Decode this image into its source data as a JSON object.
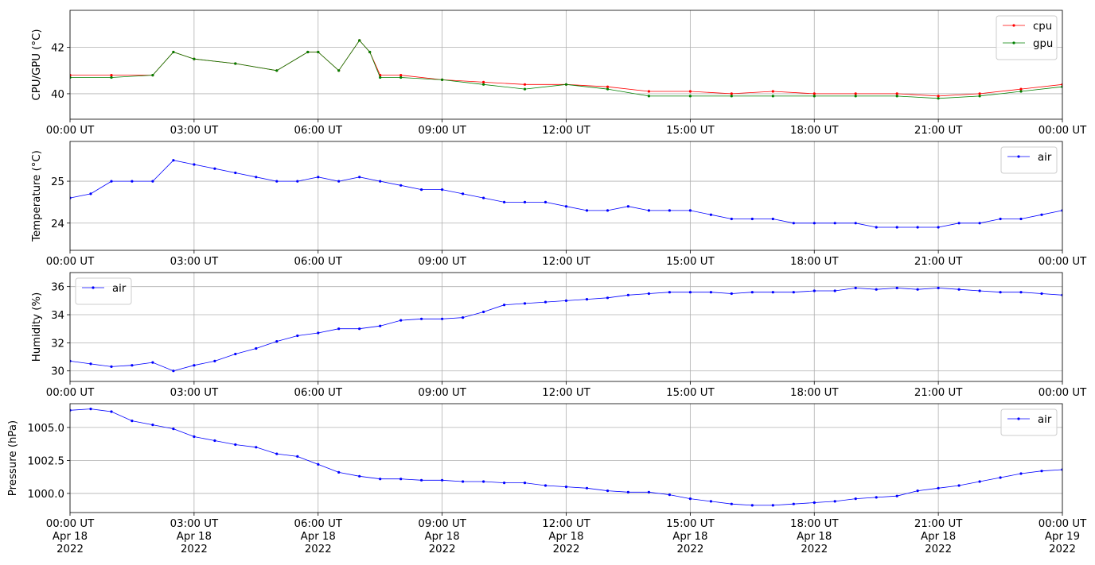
{
  "chart_data": [
    {
      "type": "line",
      "ylabel": "CPU/GPU (°C)",
      "ylim": [
        38.9,
        43.6
      ],
      "yticks": [
        40,
        42
      ],
      "xlim": [
        "2022-04-18T00:00",
        "2022-04-19T00:00"
      ],
      "xtick_labels": [
        [
          "00:00 UT"
        ],
        [
          "03:00 UT"
        ],
        [
          "06:00 UT"
        ],
        [
          "09:00 UT"
        ],
        [
          "12:00 UT"
        ],
        [
          "15:00 UT"
        ],
        [
          "18:00 UT"
        ],
        [
          "21:00 UT"
        ],
        [
          "00:00 UT"
        ]
      ],
      "grid": true,
      "legend_position": "top-right",
      "series": [
        {
          "name": "cpu",
          "color": "#ff0000",
          "marker": "dot",
          "x": [
            "00:00",
            "01:00",
            "02:00",
            "02:30",
            "03:00",
            "04:00",
            "05:00",
            "05:45",
            "06:00",
            "06:30",
            "07:00",
            "07:15",
            "07:30",
            "08:00",
            "09:00",
            "10:00",
            "11:00",
            "12:00",
            "13:00",
            "14:00",
            "15:00",
            "16:00",
            "17:00",
            "18:00",
            "19:00",
            "20:00",
            "21:00",
            "22:00",
            "23:00",
            "24:00"
          ],
          "y": [
            40.8,
            40.8,
            40.8,
            41.8,
            41.5,
            41.3,
            41.0,
            41.8,
            41.8,
            41.0,
            42.3,
            41.8,
            40.8,
            40.8,
            40.6,
            40.5,
            40.4,
            40.4,
            40.3,
            40.1,
            40.1,
            40.0,
            40.1,
            40.0,
            40.0,
            40.0,
            39.9,
            40.0,
            40.2,
            40.4
          ]
        },
        {
          "name": "gpu",
          "color": "#008000",
          "marker": "dot",
          "x": [
            "00:00",
            "01:00",
            "02:00",
            "02:30",
            "03:00",
            "04:00",
            "05:00",
            "05:45",
            "06:00",
            "06:30",
            "07:00",
            "07:15",
            "07:30",
            "08:00",
            "09:00",
            "10:00",
            "11:00",
            "12:00",
            "13:00",
            "14:00",
            "15:00",
            "16:00",
            "17:00",
            "18:00",
            "19:00",
            "20:00",
            "21:00",
            "22:00",
            "23:00",
            "24:00"
          ],
          "y": [
            40.7,
            40.7,
            40.8,
            41.8,
            41.5,
            41.3,
            41.0,
            41.8,
            41.8,
            41.0,
            42.3,
            41.8,
            40.7,
            40.7,
            40.6,
            40.4,
            40.2,
            40.4,
            40.2,
            39.9,
            39.9,
            39.9,
            39.9,
            39.9,
            39.9,
            39.9,
            39.8,
            39.9,
            40.1,
            40.3
          ]
        }
      ]
    },
    {
      "type": "line",
      "ylabel": "Temperature (°C)",
      "ylim": [
        23.35,
        25.95
      ],
      "yticks": [
        24,
        25
      ],
      "xlim": [
        "2022-04-18T00:00",
        "2022-04-19T00:00"
      ],
      "xtick_labels": [
        [
          "00:00 UT"
        ],
        [
          "03:00 UT"
        ],
        [
          "06:00 UT"
        ],
        [
          "09:00 UT"
        ],
        [
          "12:00 UT"
        ],
        [
          "15:00 UT"
        ],
        [
          "18:00 UT"
        ],
        [
          "21:00 UT"
        ],
        [
          "00:00 UT"
        ]
      ],
      "grid": true,
      "legend_position": "top-right",
      "series": [
        {
          "name": "air",
          "color": "#0000ff",
          "marker": "dot",
          "x": [
            "00:00",
            "00:30",
            "01:00",
            "01:30",
            "02:00",
            "02:30",
            "03:00",
            "03:30",
            "04:00",
            "04:30",
            "05:00",
            "05:30",
            "06:00",
            "06:30",
            "07:00",
            "07:30",
            "08:00",
            "08:30",
            "09:00",
            "09:30",
            "10:00",
            "10:30",
            "11:00",
            "11:30",
            "12:00",
            "12:30",
            "13:00",
            "13:30",
            "14:00",
            "14:30",
            "15:00",
            "15:30",
            "16:00",
            "16:30",
            "17:00",
            "17:30",
            "18:00",
            "18:30",
            "19:00",
            "19:30",
            "20:00",
            "20:30",
            "21:00",
            "21:30",
            "22:00",
            "22:30",
            "23:00",
            "23:30",
            "24:00"
          ],
          "y": [
            24.6,
            24.7,
            25.0,
            25.0,
            25.0,
            25.5,
            25.4,
            25.3,
            25.2,
            25.1,
            25.0,
            25.0,
            25.1,
            25.0,
            25.1,
            25.0,
            24.9,
            24.8,
            24.8,
            24.7,
            24.6,
            24.5,
            24.5,
            24.5,
            24.4,
            24.3,
            24.3,
            24.4,
            24.3,
            24.3,
            24.3,
            24.2,
            24.1,
            24.1,
            24.1,
            24.0,
            24.0,
            24.0,
            24.0,
            23.9,
            23.9,
            23.9,
            23.9,
            24.0,
            24.0,
            24.1,
            24.1,
            24.2,
            24.3
          ]
        }
      ]
    },
    {
      "type": "line",
      "ylabel": "Humidity (%)",
      "ylim": [
        29.25,
        37.0
      ],
      "yticks": [
        30,
        32,
        34,
        36
      ],
      "xlim": [
        "2022-04-18T00:00",
        "2022-04-19T00:00"
      ],
      "xtick_labels": [
        [
          "00:00 UT"
        ],
        [
          "03:00 UT"
        ],
        [
          "06:00 UT"
        ],
        [
          "09:00 UT"
        ],
        [
          "12:00 UT"
        ],
        [
          "15:00 UT"
        ],
        [
          "18:00 UT"
        ],
        [
          "21:00 UT"
        ],
        [
          "00:00 UT"
        ]
      ],
      "grid": true,
      "legend_position": "top-left",
      "series": [
        {
          "name": "air",
          "color": "#0000ff",
          "marker": "dot",
          "x": [
            "00:00",
            "00:30",
            "01:00",
            "01:30",
            "02:00",
            "02:30",
            "03:00",
            "03:30",
            "04:00",
            "04:30",
            "05:00",
            "05:30",
            "06:00",
            "06:30",
            "07:00",
            "07:30",
            "08:00",
            "08:30",
            "09:00",
            "09:30",
            "10:00",
            "10:30",
            "11:00",
            "11:30",
            "12:00",
            "12:30",
            "13:00",
            "13:30",
            "14:00",
            "14:30",
            "15:00",
            "15:30",
            "16:00",
            "16:30",
            "17:00",
            "17:30",
            "18:00",
            "18:30",
            "19:00",
            "19:30",
            "20:00",
            "20:30",
            "21:00",
            "21:30",
            "22:00",
            "22:30",
            "23:00",
            "23:30",
            "24:00"
          ],
          "y": [
            30.7,
            30.5,
            30.3,
            30.4,
            30.6,
            30.0,
            30.4,
            30.7,
            31.2,
            31.6,
            32.1,
            32.5,
            32.7,
            33.0,
            33.0,
            33.2,
            33.6,
            33.7,
            33.7,
            33.8,
            34.2,
            34.7,
            34.8,
            34.9,
            35.0,
            35.1,
            35.2,
            35.4,
            35.5,
            35.6,
            35.6,
            35.6,
            35.5,
            35.6,
            35.6,
            35.6,
            35.7,
            35.7,
            35.9,
            35.8,
            35.9,
            35.8,
            35.9,
            35.8,
            35.7,
            35.6,
            35.6,
            35.5,
            35.4
          ]
        }
      ]
    },
    {
      "type": "line",
      "ylabel": "Pressure (hPa)",
      "ylim": [
        998.55,
        1006.8
      ],
      "yticks": [
        "1000.0",
        "1002.5",
        "1005.0"
      ],
      "xlim": [
        "2022-04-18T00:00",
        "2022-04-19T00:00"
      ],
      "xtick_labels": [
        [
          "00:00 UT",
          "Apr 18",
          "2022"
        ],
        [
          "03:00 UT",
          "Apr 18",
          "2022"
        ],
        [
          "06:00 UT",
          "Apr 18",
          "2022"
        ],
        [
          "09:00 UT",
          "Apr 18",
          "2022"
        ],
        [
          "12:00 UT",
          "Apr 18",
          "2022"
        ],
        [
          "15:00 UT",
          "Apr 18",
          "2022"
        ],
        [
          "18:00 UT",
          "Apr 18",
          "2022"
        ],
        [
          "21:00 UT",
          "Apr 18",
          "2022"
        ],
        [
          "00:00 UT",
          "Apr 19",
          "2022"
        ]
      ],
      "grid": true,
      "legend_position": "top-right",
      "series": [
        {
          "name": "air",
          "color": "#0000ff",
          "marker": "dot",
          "x": [
            "00:00",
            "00:30",
            "01:00",
            "01:30",
            "02:00",
            "02:30",
            "03:00",
            "03:30",
            "04:00",
            "04:30",
            "05:00",
            "05:30",
            "06:00",
            "06:30",
            "07:00",
            "07:30",
            "08:00",
            "08:30",
            "09:00",
            "09:30",
            "10:00",
            "10:30",
            "11:00",
            "11:30",
            "12:00",
            "12:30",
            "13:00",
            "13:30",
            "14:00",
            "14:30",
            "15:00",
            "15:30",
            "16:00",
            "16:30",
            "17:00",
            "17:30",
            "18:00",
            "18:30",
            "19:00",
            "19:30",
            "20:00",
            "20:30",
            "21:00",
            "21:30",
            "22:00",
            "22:30",
            "23:00",
            "23:30",
            "24:00"
          ],
          "y": [
            1006.3,
            1006.4,
            1006.2,
            1005.5,
            1005.2,
            1004.9,
            1004.3,
            1004.0,
            1003.7,
            1003.5,
            1003.0,
            1002.8,
            1002.2,
            1001.6,
            1001.3,
            1001.1,
            1001.1,
            1001.0,
            1001.0,
            1000.9,
            1000.9,
            1000.8,
            1000.8,
            1000.6,
            1000.5,
            1000.4,
            1000.2,
            1000.1,
            1000.1,
            999.9,
            999.6,
            999.4,
            999.2,
            999.1,
            999.1,
            999.2,
            999.3,
            999.4,
            999.6,
            999.7,
            999.8,
            1000.2,
            1000.4,
            1000.6,
            1000.9,
            1001.2,
            1001.5,
            1001.7,
            1001.8
          ]
        }
      ]
    }
  ]
}
